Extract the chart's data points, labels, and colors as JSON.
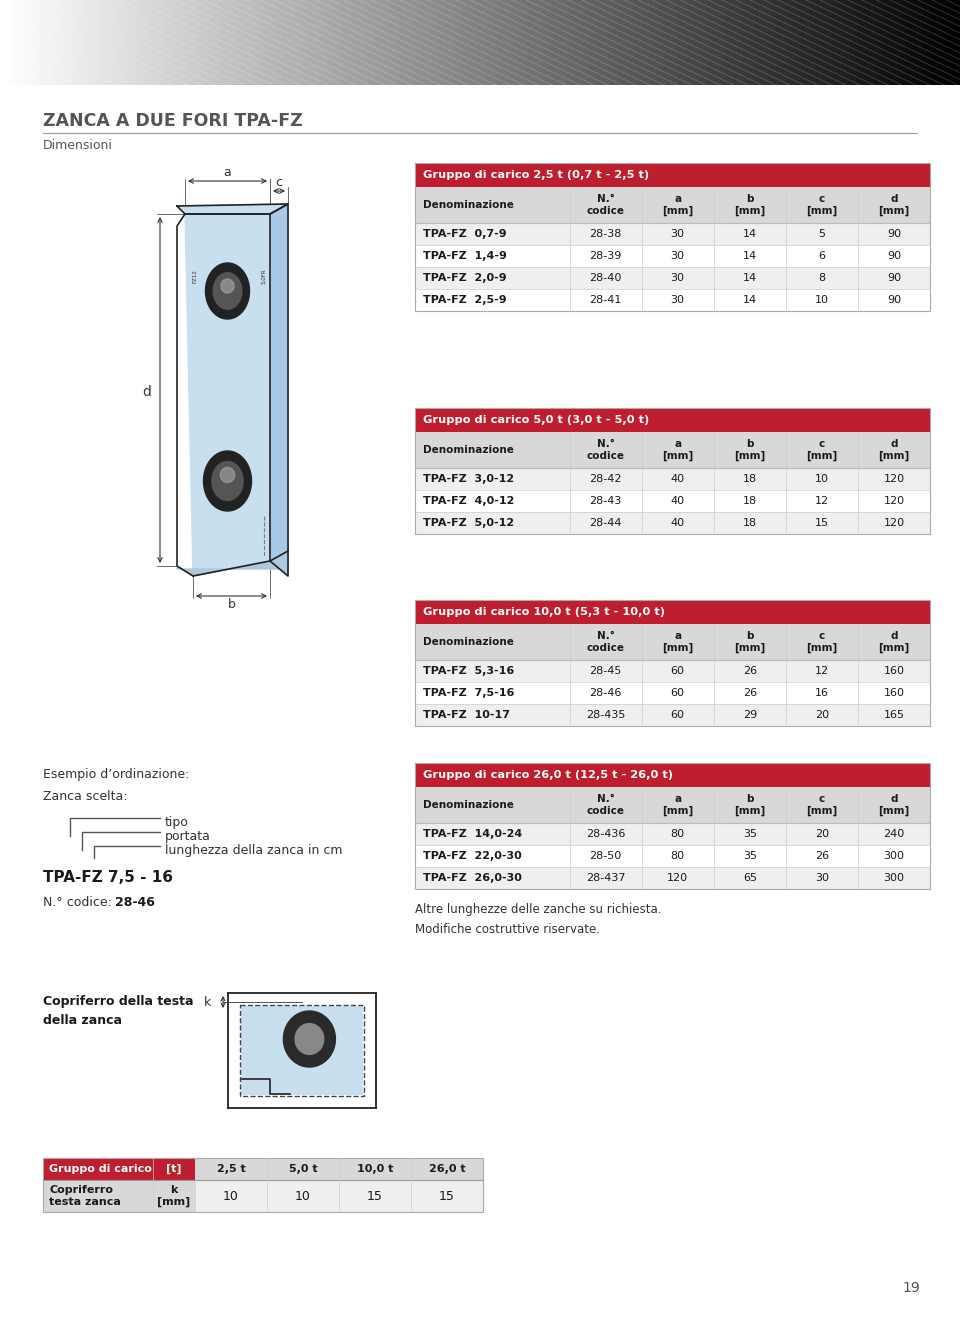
{
  "page_title": "ZANCA A DUE FORI TPA-FZ",
  "page_subtitle": "Dimensioni",
  "page_number": "19",
  "red_color": "#be1e2d",
  "col_header_bg": "#d8d8d8",
  "row_even_bg": "#efefef",
  "row_odd_bg": "#ffffff",
  "table1_title": "Gruppo di carico 2,5 t (0,7 t - 2,5 t)",
  "table1_cols": [
    "Denominazione",
    "N.°\ncodice",
    "a\n[mm]",
    "b\n[mm]",
    "c\n[mm]",
    "d\n[mm]"
  ],
  "table1_rows": [
    [
      "TPA-FZ  0,7-9",
      "28-38",
      "30",
      "14",
      "5",
      "90"
    ],
    [
      "TPA-FZ  1,4-9",
      "28-39",
      "30",
      "14",
      "6",
      "90"
    ],
    [
      "TPA-FZ  2,0-9",
      "28-40",
      "30",
      "14",
      "8",
      "90"
    ],
    [
      "TPA-FZ  2,5-9",
      "28-41",
      "30",
      "14",
      "10",
      "90"
    ]
  ],
  "table2_title": "Gruppo di carico 5,0 t (3,0 t - 5,0 t)",
  "table2_cols": [
    "Denominazione",
    "N.°\ncodice",
    "a\n[mm]",
    "b\n[mm]",
    "c\n[mm]",
    "d\n[mm]"
  ],
  "table2_rows": [
    [
      "TPA-FZ  3,0-12",
      "28-42",
      "40",
      "18",
      "10",
      "120"
    ],
    [
      "TPA-FZ  4,0-12",
      "28-43",
      "40",
      "18",
      "12",
      "120"
    ],
    [
      "TPA-FZ  5,0-12",
      "28-44",
      "40",
      "18",
      "15",
      "120"
    ]
  ],
  "table3_title": "Gruppo di carico 10,0 t (5,3 t - 10,0 t)",
  "table3_cols": [
    "Denominazione",
    "N.°\ncodice",
    "a\n[mm]",
    "b\n[mm]",
    "c\n[mm]",
    "d\n[mm]"
  ],
  "table3_rows": [
    [
      "TPA-FZ  5,3-16",
      "28-45",
      "60",
      "26",
      "12",
      "160"
    ],
    [
      "TPA-FZ  7,5-16",
      "28-46",
      "60",
      "26",
      "16",
      "160"
    ],
    [
      "TPA-FZ  10-17",
      "28-435",
      "60",
      "29",
      "20",
      "165"
    ]
  ],
  "table4_title": "Gruppo di carico 26,0 t (12,5 t - 26,0 t)",
  "table4_cols": [
    "Denominazione",
    "N.°\ncodice",
    "a\n[mm]",
    "b\n[mm]",
    "c\n[mm]",
    "d\n[mm]"
  ],
  "table4_rows": [
    [
      "TPA-FZ  14,0-24",
      "28-436",
      "80",
      "35",
      "20",
      "240"
    ],
    [
      "TPA-FZ  22,0-30",
      "28-50",
      "80",
      "35",
      "26",
      "300"
    ],
    [
      "TPA-FZ  26,0-30",
      "28-437",
      "120",
      "65",
      "30",
      "300"
    ]
  ],
  "example_title": "Esempio d’ordinazione:",
  "example_line1": "Zanca scelta:",
  "example_label_tipo": "tipo",
  "example_label_portata": "portata",
  "example_label_lungh": "lunghezza della zanca in cm",
  "example_model": "TPA-FZ 7,5 - 16",
  "example_code_prefix": "N.° codice: ",
  "example_code_bold": "28-46",
  "copriferro_title": "Copriferro della testa\ndella zanca",
  "footer_text": "Altre lunghezze delle zanche su richiesta.\nModifiche costruttive riservate.",
  "cop_tbl_col0": "Gruppo di carico",
  "cop_tbl_col1": "[t]",
  "cop_tbl_vals": [
    "2,5 t",
    "5,0 t",
    "10,0 t",
    "26,0 t"
  ],
  "cop_row_label": "Copriferro\ntesta zanca",
  "cop_row_unit": "k\n[mm]",
  "cop_row_vals": [
    "10",
    "10",
    "15",
    "15"
  ]
}
